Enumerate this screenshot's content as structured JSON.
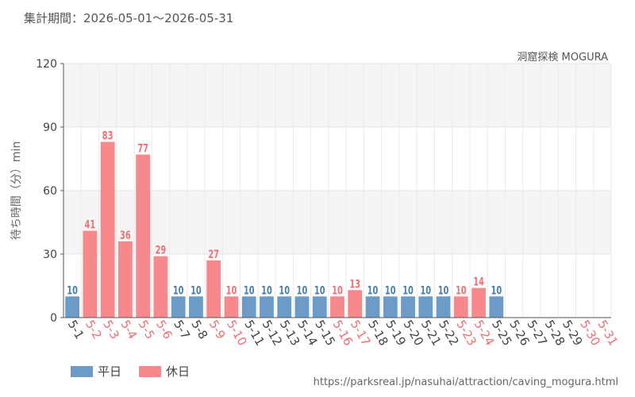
{
  "header": {
    "date_range": "集計期間：2026-05-01～2026-05-31",
    "attraction": "洞窟探検 MOGURA"
  },
  "footer": {
    "url": "https://parksreal.jp/nasuhai/attraction/caving_mogura.html"
  },
  "colors": {
    "weekday": "#6b9bc6",
    "holiday": "#f7898c",
    "weekday_label": "#4a7eaa",
    "holiday_label": "#f07075"
  },
  "chart_data": {
    "type": "bar",
    "ylabel": "待ち時間（分）min",
    "ylim": [
      0,
      120
    ],
    "yticks": [
      0,
      30,
      60,
      90,
      120
    ],
    "grid": true,
    "legend_position": "bottom-left",
    "series": [
      {
        "name": "平日",
        "key": "weekday"
      },
      {
        "name": "休日",
        "key": "holiday"
      }
    ],
    "categories": [
      "5-1",
      "5-2",
      "5-3",
      "5-4",
      "5-5",
      "5-6",
      "5-7",
      "5-8",
      "5-9",
      "5-10",
      "5-11",
      "5-12",
      "5-13",
      "5-14",
      "5-15",
      "5-16",
      "5-17",
      "5-18",
      "5-19",
      "5-20",
      "5-21",
      "5-22",
      "5-23",
      "5-24",
      "5-25",
      "5-26",
      "5-27",
      "5-28",
      "5-29",
      "5-30",
      "5-31"
    ],
    "values": [
      10,
      41,
      83,
      36,
      77,
      29,
      10,
      10,
      27,
      10,
      10,
      10,
      10,
      10,
      10,
      10,
      13,
      10,
      10,
      10,
      10,
      10,
      10,
      14,
      10,
      null,
      null,
      null,
      null,
      null,
      null
    ],
    "day_types": [
      "weekday",
      "holiday",
      "holiday",
      "holiday",
      "holiday",
      "holiday",
      "weekday",
      "weekday",
      "holiday",
      "holiday",
      "weekday",
      "weekday",
      "weekday",
      "weekday",
      "weekday",
      "holiday",
      "holiday",
      "weekday",
      "weekday",
      "weekday",
      "weekday",
      "weekday",
      "holiday",
      "holiday",
      "weekday",
      "weekday",
      "weekday",
      "weekday",
      "weekday",
      "holiday",
      "holiday"
    ]
  }
}
